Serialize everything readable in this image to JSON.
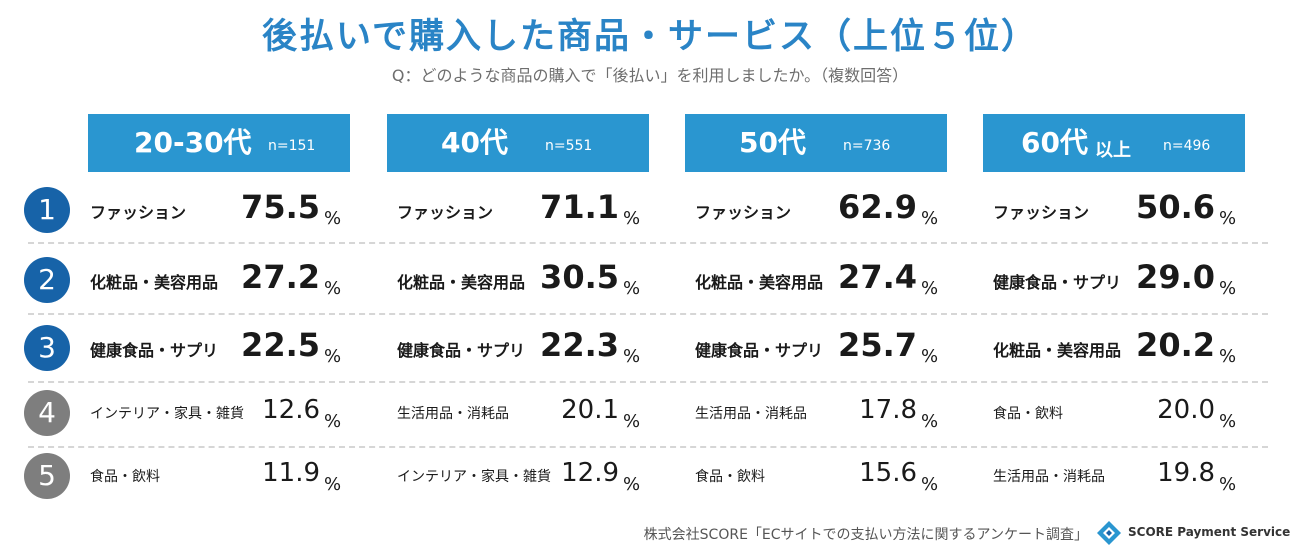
{
  "title": "後払いで購入した商品・サービス（上位５位）",
  "subtitle": "Q：どのような商品の購入で「後払い」を利用しましたか。（複数回答）",
  "footer": "株式会社SCORE「ECサイトでの支払い方法に関するアンケート調査」",
  "logo_text": "SCORE  Payment Service",
  "percent_sign": "%",
  "colors": {
    "title": "#2a84c6",
    "header": "#2a96d0",
    "rank_top": "#1763a8",
    "rank_low": "#7e7e7e"
  },
  "chart_data": {
    "type": "table",
    "title": "後払いで購入した商品・サービス（上位５位）",
    "unit": "%",
    "ranks": [
      "1",
      "2",
      "3",
      "4",
      "5"
    ],
    "groups": [
      {
        "age": "20-30代",
        "suffix": "",
        "n": "n=151",
        "items": [
          {
            "name": "ファッション",
            "value": "75.5"
          },
          {
            "name": "化粧品・美容用品",
            "value": "27.2"
          },
          {
            "name": "健康食品・サプリ",
            "value": "22.5"
          },
          {
            "name": "インテリア・家具・雑貨",
            "value": "12.6"
          },
          {
            "name": "食品・飲料",
            "value": "11.9"
          }
        ]
      },
      {
        "age": "40代",
        "suffix": "",
        "n": "n=551",
        "items": [
          {
            "name": "ファッション",
            "value": "71.1"
          },
          {
            "name": "化粧品・美容用品",
            "value": "30.5"
          },
          {
            "name": "健康食品・サプリ",
            "value": "22.3"
          },
          {
            "name": "生活用品・消耗品",
            "value": "20.1"
          },
          {
            "name": "インテリア・家具・雑貨",
            "value": "12.9"
          }
        ]
      },
      {
        "age": "50代",
        "suffix": "",
        "n": "n=736",
        "items": [
          {
            "name": "ファッション",
            "value": "62.9"
          },
          {
            "name": "化粧品・美容用品",
            "value": "27.4"
          },
          {
            "name": "健康食品・サプリ",
            "value": "25.7"
          },
          {
            "name": "生活用品・消耗品",
            "value": "17.8"
          },
          {
            "name": "食品・飲料",
            "value": "15.6"
          }
        ]
      },
      {
        "age": "60代",
        "suffix": "以上",
        "n": "n=496",
        "items": [
          {
            "name": "ファッション",
            "value": "50.6"
          },
          {
            "name": "健康食品・サプリ",
            "value": "29.0"
          },
          {
            "name": "化粧品・美容用品",
            "value": "20.2"
          },
          {
            "name": "食品・飲料",
            "value": "20.0"
          },
          {
            "name": "生活用品・消耗品",
            "value": "19.8"
          }
        ]
      }
    ]
  }
}
